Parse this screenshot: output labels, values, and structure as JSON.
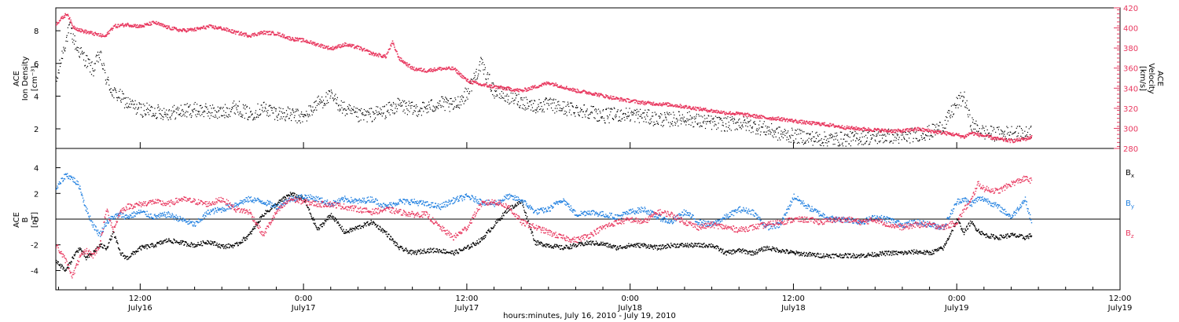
{
  "figure_xlabel": "hours:minutes, July 16, 2010 - July 19, 2010",
  "x_ticks": [
    {
      "top": "12:00",
      "bottom": "July16"
    },
    {
      "top": "0:00",
      "bottom": "July17"
    },
    {
      "top": "12:00",
      "bottom": "July17"
    },
    {
      "top": "0:00",
      "bottom": "July18"
    },
    {
      "top": "12:00",
      "bottom": "July18"
    },
    {
      "top": "0:00",
      "bottom": "July19"
    },
    {
      "top": "12:00",
      "bottom": "July19"
    }
  ],
  "colors": {
    "black": "#000000",
    "pink": "#e8385f",
    "blue": "#1f7fe0"
  },
  "chart_data": [
    {
      "type": "scatter",
      "x_unit": "hours since 2010-07-16 00:00",
      "xlim": [
        5.8,
        84.0
      ],
      "left_axis": {
        "label": [
          "ACE",
          "Ion Density",
          "[cm⁻³]"
        ],
        "ylim": [
          0.8,
          9.4
        ],
        "ticks": [
          2,
          4,
          6,
          8
        ]
      },
      "right_axis": {
        "label": [
          "ACE",
          "Velocity",
          "[km/s]"
        ],
        "ylim": [
          280,
          420
        ],
        "ticks": [
          280,
          300,
          320,
          340,
          360,
          380,
          400,
          420
        ]
      },
      "series": [
        {
          "axis": "left",
          "color": "#000000",
          "x": [
            5.8,
            6.3,
            6.8,
            7.3,
            8.0,
            8.5,
            9.0,
            9.5,
            10.0,
            10.5,
            11.0,
            12.0,
            13.0,
            14.0,
            15.0,
            16.0,
            17.0,
            18.0,
            19.0,
            20.0,
            21.0,
            22.0,
            23.0,
            24.0,
            25.0,
            26.0,
            27.0,
            28.0,
            29.0,
            30.0,
            31.0,
            32.0,
            33.0,
            34.0,
            35.0,
            36.0,
            37.0,
            38.0,
            39.0,
            40.0,
            41.0,
            42.0,
            43.0,
            44.0,
            45.0,
            46.0,
            47.0,
            48.0,
            49.0,
            50.0,
            51.0,
            52.0,
            53.0,
            54.0,
            55.0,
            56.0,
            57.0,
            58.0,
            59.0,
            60.0,
            61.0,
            62.0,
            63.0,
            64.0,
            65.0,
            66.0,
            67.0,
            68.0,
            69.0,
            70.0,
            71.0,
            72.0,
            72.5,
            73.0,
            73.5,
            74.0,
            75.0,
            76.0,
            77.0,
            77.5
          ],
          "y": [
            4.8,
            6.8,
            8.2,
            7.0,
            6.2,
            5.6,
            6.6,
            5.0,
            4.2,
            4.0,
            3.6,
            3.2,
            3.1,
            3.0,
            3.1,
            3.2,
            3.1,
            3.0,
            3.4,
            2.9,
            3.3,
            3.0,
            2.9,
            2.7,
            3.6,
            4.0,
            3.2,
            2.8,
            2.9,
            3.1,
            3.5,
            3.2,
            3.3,
            3.6,
            3.4,
            4.2,
            6.0,
            4.3,
            4.0,
            3.7,
            3.4,
            3.5,
            3.3,
            3.2,
            3.1,
            2.8,
            2.9,
            2.9,
            2.8,
            2.6,
            2.6,
            2.7,
            2.5,
            2.4,
            2.3,
            2.4,
            2.2,
            2.0,
            1.7,
            1.6,
            1.5,
            1.4,
            1.4,
            1.4,
            1.5,
            1.5,
            1.6,
            1.5,
            1.7,
            1.8,
            2.2,
            3.6,
            4.0,
            2.4,
            2.0,
            1.8,
            1.7,
            1.8,
            1.7,
            1.9
          ]
        },
        {
          "axis": "right",
          "color": "#e8385f",
          "x": [
            5.8,
            6.2,
            6.6,
            7.0,
            7.6,
            8.2,
            8.8,
            9.4,
            10.0,
            11.0,
            12.0,
            13.0,
            14.0,
            15.0,
            16.0,
            17.0,
            18.0,
            19.0,
            20.0,
            21.0,
            22.0,
            23.0,
            24.0,
            25.0,
            26.0,
            27.0,
            28.0,
            29.0,
            30.0,
            30.5,
            31.0,
            32.0,
            33.0,
            34.0,
            35.0,
            36.0,
            37.0,
            38.0,
            39.0,
            40.0,
            41.0,
            42.0,
            43.0,
            44.0,
            45.0,
            46.0,
            47.0,
            48.0,
            49.0,
            50.0,
            51.0,
            52.0,
            53.0,
            54.0,
            55.0,
            56.0,
            57.0,
            58.0,
            59.0,
            60.0,
            61.0,
            62.0,
            63.0,
            64.0,
            65.0,
            66.0,
            67.0,
            68.0,
            69.0,
            70.0,
            71.0,
            72.0,
            72.5,
            73.0,
            74.0,
            75.0,
            76.0,
            77.0,
            77.5
          ],
          "y": [
            405,
            410,
            415,
            402,
            398,
            396,
            394,
            392,
            402,
            404,
            402,
            406,
            401,
            398,
            399,
            402,
            400,
            396,
            393,
            396,
            395,
            390,
            388,
            384,
            380,
            384,
            381,
            375,
            372,
            386,
            370,
            360,
            358,
            360,
            360,
            348,
            344,
            342,
            340,
            338,
            342,
            346,
            342,
            338,
            336,
            333,
            330,
            328,
            326,
            325,
            324,
            322,
            320,
            318,
            316,
            315,
            313,
            311,
            310,
            308,
            306,
            305,
            303,
            301,
            300,
            299,
            298,
            298,
            300,
            298,
            296,
            294,
            292,
            296,
            293,
            290,
            288,
            290,
            292
          ]
        }
      ]
    },
    {
      "type": "scatter",
      "x_unit": "hours since 2010-07-16 00:00",
      "xlim": [
        5.8,
        84.0
      ],
      "y_axis": {
        "label": [
          "ACE",
          "B",
          "[nT]"
        ],
        "ylim": [
          -5.5,
          5.5
        ],
        "ticks": [
          -4,
          -2,
          0,
          2,
          4
        ]
      },
      "zero_line": true,
      "legend": [
        {
          "label": "B",
          "subscript": "x",
          "color": "#000000"
        },
        {
          "label": "B",
          "subscript": "y",
          "color": "#1f7fe0"
        },
        {
          "label": "B",
          "subscript": "z",
          "color": "#e8385f"
        }
      ],
      "series": [
        {
          "name": "Bx",
          "color": "#000000",
          "x": [
            5.8,
            6.5,
            7.0,
            7.5,
            8.0,
            8.5,
            9.0,
            9.5,
            10.0,
            10.5,
            11.0,
            12.0,
            13.0,
            14.0,
            15.0,
            16.0,
            17.0,
            18.0,
            19.0,
            20.0,
            21.0,
            22.0,
            23.0,
            24.0,
            25.0,
            26.0,
            27.0,
            28.0,
            29.0,
            30.0,
            31.0,
            32.0,
            33.0,
            34.0,
            35.0,
            36.0,
            37.0,
            38.0,
            39.0,
            40.0,
            41.0,
            42.0,
            43.0,
            44.0,
            45.0,
            46.0,
            47.0,
            48.0,
            49.0,
            50.0,
            51.0,
            52.0,
            53.0,
            54.0,
            55.0,
            56.0,
            57.0,
            58.0,
            59.0,
            60.0,
            61.0,
            62.0,
            63.0,
            64.0,
            65.0,
            66.0,
            67.0,
            68.0,
            69.0,
            70.0,
            71.0,
            72.0,
            72.5,
            73.0,
            73.5,
            74.0,
            75.0,
            76.0,
            77.0,
            77.5
          ],
          "y": [
            -3.2,
            -4.0,
            -3.0,
            -2.2,
            -3.0,
            -2.6,
            -2.0,
            -2.2,
            -1.0,
            -2.6,
            -3.0,
            -2.2,
            -2.0,
            -1.6,
            -1.8,
            -2.0,
            -1.7,
            -2.1,
            -2.0,
            -1.2,
            0.4,
            1.2,
            2.0,
            1.6,
            -0.8,
            0.4,
            -1.0,
            -0.6,
            -0.2,
            -1.0,
            -2.2,
            -2.6,
            -2.4,
            -2.4,
            -2.6,
            -2.2,
            -1.6,
            -0.4,
            0.8,
            1.4,
            -1.8,
            -2.0,
            -2.2,
            -2.0,
            -1.8,
            -1.9,
            -2.2,
            -2.0,
            -2.0,
            -2.2,
            -2.0,
            -2.0,
            -2.0,
            -2.0,
            -2.6,
            -2.4,
            -2.6,
            -2.2,
            -2.4,
            -2.6,
            -2.7,
            -2.8,
            -2.8,
            -2.8,
            -2.8,
            -2.7,
            -2.6,
            -2.6,
            -2.5,
            -2.6,
            -2.2,
            0.0,
            -1.0,
            -0.2,
            -0.8,
            -1.2,
            -1.4,
            -1.2,
            -1.4,
            -1.2
          ]
        },
        {
          "name": "By",
          "color": "#1f7fe0",
          "x": [
            5.8,
            6.5,
            7.0,
            7.5,
            8.0,
            8.5,
            9.0,
            9.5,
            10.0,
            10.5,
            11.0,
            12.0,
            13.0,
            14.0,
            15.0,
            16.0,
            17.0,
            18.0,
            19.0,
            20.0,
            21.0,
            22.0,
            23.0,
            24.0,
            25.0,
            26.0,
            27.0,
            28.0,
            29.0,
            30.0,
            31.0,
            32.0,
            33.0,
            34.0,
            35.0,
            36.0,
            37.0,
            38.0,
            39.0,
            40.0,
            41.0,
            42.0,
            43.0,
            44.0,
            45.0,
            46.0,
            47.0,
            48.0,
            49.0,
            50.0,
            51.0,
            52.0,
            53.0,
            54.0,
            55.0,
            56.0,
            57.0,
            58.0,
            59.0,
            60.0,
            61.0,
            62.0,
            63.0,
            64.0,
            65.0,
            66.0,
            67.0,
            68.0,
            69.0,
            70.0,
            71.0,
            72.0,
            72.5,
            73.0,
            73.5,
            74.0,
            75.0,
            76.0,
            77.0,
            77.5
          ],
          "y": [
            2.4,
            3.5,
            3.2,
            2.6,
            0.8,
            -0.4,
            -1.2,
            -0.2,
            0.2,
            0.4,
            0.2,
            0.6,
            0.2,
            0.4,
            0.0,
            -0.4,
            0.6,
            0.8,
            1.2,
            1.6,
            1.4,
            1.0,
            1.6,
            1.8,
            1.6,
            1.2,
            1.6,
            1.4,
            1.6,
            1.0,
            1.4,
            1.4,
            1.2,
            1.0,
            1.5,
            1.8,
            1.4,
            1.2,
            1.8,
            1.5,
            0.6,
            0.8,
            1.6,
            0.4,
            0.6,
            0.4,
            0.2,
            0.6,
            0.8,
            0.2,
            -0.2,
            0.6,
            -0.2,
            -0.4,
            0.2,
            0.8,
            0.6,
            -0.6,
            -0.4,
            1.8,
            1.0,
            0.4,
            0.0,
            0.0,
            -0.2,
            0.2,
            0.0,
            -0.4,
            -0.2,
            -0.4,
            -0.6,
            1.4,
            1.6,
            1.2,
            1.6,
            1.6,
            1.0,
            0.2,
            1.6,
            -0.4
          ]
        },
        {
          "name": "Bz",
          "color": "#e8385f",
          "x": [
            5.8,
            6.5,
            7.0,
            7.5,
            8.0,
            8.5,
            9.0,
            9.5,
            10.0,
            10.5,
            11.0,
            12.0,
            13.0,
            14.0,
            15.0,
            16.0,
            17.0,
            18.0,
            19.0,
            20.0,
            21.0,
            22.0,
            23.0,
            24.0,
            25.0,
            26.0,
            27.0,
            28.0,
            29.0,
            30.0,
            31.0,
            32.0,
            33.0,
            34.0,
            35.0,
            36.0,
            37.0,
            38.0,
            39.0,
            40.0,
            41.0,
            42.0,
            43.0,
            44.0,
            45.0,
            46.0,
            47.0,
            48.0,
            49.0,
            50.0,
            51.0,
            52.0,
            53.0,
            54.0,
            55.0,
            56.0,
            57.0,
            58.0,
            59.0,
            60.0,
            61.0,
            62.0,
            63.0,
            64.0,
            65.0,
            66.0,
            67.0,
            68.0,
            69.0,
            70.0,
            71.0,
            72.0,
            72.5,
            73.0,
            73.5,
            74.0,
            75.0,
            76.0,
            77.0,
            77.5
          ],
          "y": [
            -2.0,
            -3.2,
            -4.4,
            -3.0,
            -2.4,
            -2.8,
            -2.0,
            0.8,
            -0.8,
            0.6,
            1.0,
            1.2,
            1.4,
            1.2,
            1.6,
            1.4,
            1.2,
            1.6,
            0.8,
            0.6,
            -1.2,
            0.6,
            1.6,
            1.4,
            1.2,
            1.2,
            1.0,
            0.8,
            0.6,
            0.8,
            0.6,
            0.4,
            0.4,
            -0.6,
            -1.4,
            -0.6,
            1.2,
            1.4,
            1.0,
            -0.2,
            -0.6,
            -1.0,
            -1.4,
            -1.6,
            -1.2,
            -0.6,
            -0.2,
            0.0,
            -0.2,
            0.6,
            0.4,
            -0.2,
            -0.6,
            -0.4,
            -0.6,
            -0.8,
            -0.6,
            -0.4,
            -0.2,
            0.0,
            0.0,
            -0.2,
            0.0,
            0.0,
            -0.2,
            0.0,
            -0.4,
            -0.6,
            -0.4,
            -0.4,
            -0.6,
            -0.2,
            0.8,
            1.4,
            2.8,
            2.4,
            2.2,
            2.8,
            3.2,
            3.0
          ]
        }
      ]
    }
  ]
}
